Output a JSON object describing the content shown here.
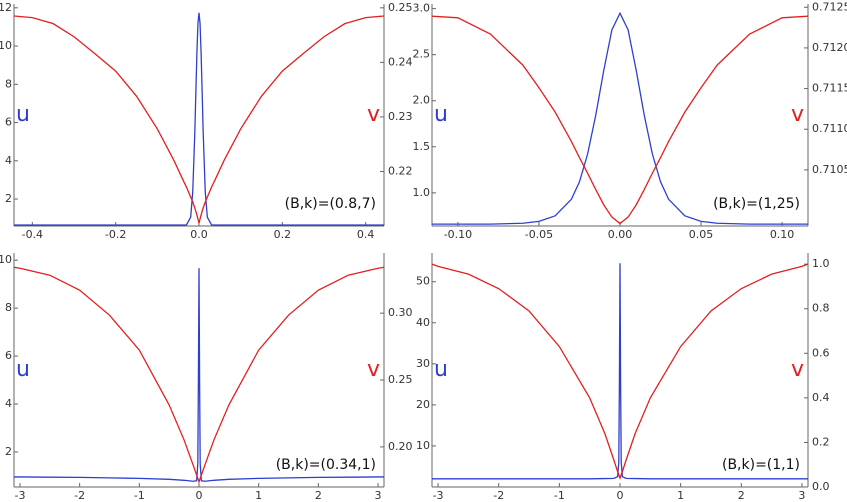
{
  "chart_data": [
    {
      "type": "line",
      "annotation": "(B,k)=(0.8,7)",
      "x": [
        -0.444,
        -0.4,
        -0.35,
        -0.3,
        -0.25,
        -0.2,
        -0.15,
        -0.1,
        -0.06,
        -0.04,
        -0.03,
        -0.02,
        -0.015,
        -0.01,
        -0.0075,
        -0.005,
        -0.0025,
        0,
        0.0025,
        0.005,
        0.0075,
        0.01,
        0.015,
        0.02,
        0.03,
        0.04,
        0.06,
        0.1,
        0.15,
        0.2,
        0.25,
        0.3,
        0.35,
        0.4,
        0.444
      ],
      "series": [
        {
          "name": "u",
          "color": "#2e3fd0",
          "values": [
            0.64,
            0.64,
            0.64,
            0.64,
            0.64,
            0.64,
            0.64,
            0.64,
            0.64,
            0.64,
            0.65,
            1.05,
            2.38,
            5.52,
            7.63,
            9.68,
            11.19,
            11.74,
            11.19,
            9.68,
            7.63,
            5.52,
            2.38,
            1.05,
            0.65,
            0.64,
            0.64,
            0.64,
            0.64,
            0.64,
            0.64,
            0.64,
            0.64,
            0.64,
            0.64
          ]
        },
        {
          "name": "v",
          "color": "#e3201f",
          "axis": "y2",
          "values": [
            0.2485,
            0.2482,
            0.2471,
            0.2447,
            0.2416,
            0.2384,
            0.2338,
            0.2278,
            0.222,
            0.2187,
            0.2171,
            0.2153,
            0.2144,
            0.2133,
            0.2127,
            0.212,
            0.2113,
            0.2105,
            0.2113,
            0.212,
            0.2127,
            0.2133,
            0.2144,
            0.2153,
            0.2171,
            0.2187,
            0.222,
            0.2278,
            0.2338,
            0.2384,
            0.2416,
            0.2447,
            0.2471,
            0.2482,
            0.2485
          ]
        }
      ],
      "xlim": [
        -0.444,
        0.444
      ],
      "xticks": [
        -0.4,
        -0.2,
        {
          "value": 0,
          "label": "0.0"
        },
        0.2,
        0.4
      ],
      "ylim": [
        0.59,
        12.2
      ],
      "yticks": [
        2,
        4,
        6,
        8,
        10,
        12
      ],
      "y2lim": [
        0.21,
        0.2507
      ],
      "y2ticks": [
        0.22,
        0.23,
        0.24,
        0.25
      ]
    },
    {
      "type": "line",
      "annotation": "(B,k)=(1,25)",
      "x": [
        -0.116,
        -0.1,
        -0.08,
        -0.06,
        -0.05,
        -0.04,
        -0.03,
        -0.025,
        -0.02,
        -0.015,
        -0.01,
        -0.005,
        0,
        0.005,
        0.01,
        0.015,
        0.02,
        0.025,
        0.03,
        0.04,
        0.05,
        0.06,
        0.08,
        0.1,
        0.116
      ],
      "series": [
        {
          "name": "u",
          "color": "#2e3fd0",
          "values": [
            0.66,
            0.66,
            0.66,
            0.67,
            0.69,
            0.75,
            0.93,
            1.12,
            1.42,
            1.84,
            2.33,
            2.77,
            2.95,
            2.77,
            2.33,
            1.84,
            1.42,
            1.12,
            0.93,
            0.75,
            0.69,
            0.67,
            0.66,
            0.66,
            0.66
          ]
        },
        {
          "name": "v",
          "color": "#e3201f",
          "axis": "y2",
          "values": [
            0.71239,
            0.71237,
            0.71217,
            0.71179,
            0.71151,
            0.71121,
            0.71085,
            0.71065,
            0.71046,
            0.71026,
            0.71007,
            0.70992,
            0.70984,
            0.70992,
            0.71007,
            0.71026,
            0.71046,
            0.71065,
            0.71085,
            0.71121,
            0.71151,
            0.71179,
            0.71217,
            0.71237,
            0.71239
          ]
        }
      ],
      "xlim": [
        -0.116,
        0.116
      ],
      "xticks": [
        {
          "value": -0.1,
          "label": "-0.10"
        },
        -0.05,
        {
          "value": 0,
          "label": "0.00"
        },
        0.05,
        {
          "value": 0.1,
          "label": "0.10"
        }
      ],
      "ylim": [
        0.64,
        3.05
      ],
      "yticks": [
        {
          "value": 1,
          "label": "1.0"
        },
        1.5,
        {
          "value": 2,
          "label": "2.0"
        },
        2.5,
        {
          "value": 3,
          "label": "3.0"
        }
      ],
      "y2lim": [
        0.70981,
        0.71254
      ],
      "y2ticks": [
        0.7105,
        {
          "value": 0.711,
          "label": "0.7110"
        },
        0.7115,
        {
          "value": 0.712,
          "label": "0.7120"
        },
        0.7125
      ]
    },
    {
      "type": "line",
      "annotation": "(B,k)=(0.34,1)",
      "x": [
        -3.1,
        -3,
        -2.5,
        -2,
        -1.5,
        -1,
        -0.5,
        -0.25,
        -0.1,
        -0.04,
        -0.02,
        -0.01,
        0,
        0.01,
        0.02,
        0.04,
        0.1,
        0.25,
        0.5,
        1,
        1.5,
        2,
        2.5,
        3,
        3.1
      ],
      "series": [
        {
          "name": "u",
          "color": "#2e3fd0",
          "values": [
            0.96,
            0.96,
            0.95,
            0.94,
            0.92,
            0.9,
            0.86,
            0.82,
            0.78,
            0.8,
            1.5,
            5.0,
            9.67,
            5.0,
            1.5,
            0.8,
            0.78,
            0.82,
            0.86,
            0.9,
            0.92,
            0.94,
            0.95,
            0.96,
            0.96
          ]
        },
        {
          "name": "v",
          "color": "#e3201f",
          "axis": "y2",
          "values": [
            0.3343,
            0.3336,
            0.3284,
            0.3172,
            0.2985,
            0.2724,
            0.2313,
            0.2052,
            0.1866,
            0.179,
            0.1765,
            0.1752,
            0.1739,
            0.1752,
            0.1765,
            0.179,
            0.1866,
            0.2052,
            0.2313,
            0.2724,
            0.2985,
            0.3172,
            0.3284,
            0.3336,
            0.3343
          ]
        }
      ],
      "xlim": [
        -3.1,
        3.1
      ],
      "xticks": [
        -3,
        -2,
        -1,
        0,
        1,
        2,
        3
      ],
      "ylim": [
        0.54,
        10.3
      ],
      "yticks": [
        2,
        4,
        6,
        8,
        10
      ],
      "y2lim": [
        0.17,
        0.345
      ],
      "y2ticks": [
        {
          "value": 0.2,
          "label": "0.20"
        },
        0.25,
        {
          "value": 0.3,
          "label": "0.30"
        }
      ]
    },
    {
      "type": "line",
      "annotation": "(B,k)=(1,1)",
      "x": [
        -3.1,
        -3,
        -2.5,
        -2,
        -1.5,
        -1,
        -0.5,
        -0.25,
        -0.1,
        -0.04,
        -0.02,
        -0.01,
        0,
        0.01,
        0.02,
        0.04,
        0.1,
        0.25,
        0.5,
        1,
        1.5,
        2,
        2.5,
        3,
        3.1
      ],
      "series": [
        {
          "name": "u",
          "color": "#2e3fd0",
          "values": [
            2.0,
            2.0,
            2.0,
            2.0,
            2.0,
            2.0,
            2.0,
            2.05,
            2.1,
            2.5,
            6.0,
            25,
            54.5,
            25,
            6.0,
            2.5,
            2.1,
            2.05,
            2.0,
            2.0,
            2.0,
            2.0,
            2.0,
            2.0,
            2.0
          ]
        },
        {
          "name": "v",
          "color": "#e3201f",
          "axis": "y2",
          "values": [
            1.0,
            0.99,
            0.955,
            0.89,
            0.79,
            0.63,
            0.4,
            0.24,
            0.12,
            0.07,
            0.055,
            0.047,
            0.04,
            0.047,
            0.055,
            0.07,
            0.12,
            0.24,
            0.4,
            0.63,
            0.79,
            0.89,
            0.955,
            0.99,
            1.0
          ]
        }
      ],
      "xlim": [
        -3.1,
        3.1
      ],
      "xticks": [
        -3,
        -2,
        -1,
        0,
        1,
        2,
        3
      ],
      "ylim": [
        0,
        57
      ],
      "yticks": [
        10,
        20,
        30,
        40,
        50
      ],
      "y2lim": [
        0,
        1.05
      ],
      "y2ticks": [
        {
          "value": 0,
          "label": "0.0"
        },
        0.2,
        0.4,
        0.6,
        0.8,
        {
          "value": 1,
          "label": "1.0"
        }
      ]
    }
  ]
}
